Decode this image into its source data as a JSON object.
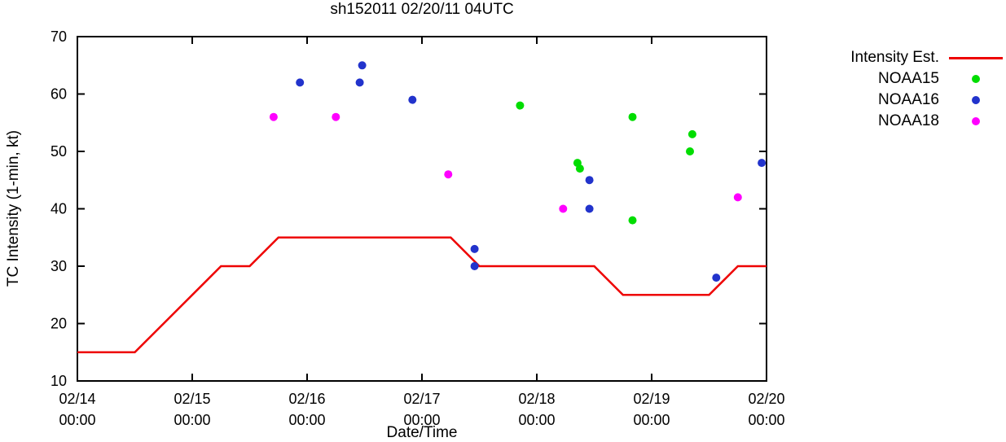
{
  "title": "sh152011 02/20/11 04UTC",
  "chart_data": {
    "type": "line",
    "title": "sh152011 02/20/11 04UTC",
    "xlabel": "Date/Time",
    "ylabel": "TC Intensity (1-min, kt)",
    "ylim": [
      10,
      70
    ],
    "x_range_hours": [
      0,
      144
    ],
    "grid": false,
    "legend_position": "outside-top-right",
    "y_ticks": [
      10,
      20,
      30,
      40,
      50,
      60,
      70
    ],
    "x_ticks": [
      {
        "hour": 0,
        "date": "02/14",
        "time": "00:00"
      },
      {
        "hour": 24,
        "date": "02/15",
        "time": "00:00"
      },
      {
        "hour": 48,
        "date": "02/16",
        "time": "00:00"
      },
      {
        "hour": 72,
        "date": "02/17",
        "time": "00:00"
      },
      {
        "hour": 96,
        "date": "02/18",
        "time": "00:00"
      },
      {
        "hour": 120,
        "date": "02/19",
        "time": "00:00"
      },
      {
        "hour": 144,
        "date": "02/20",
        "time": "00:00"
      }
    ],
    "series": [
      {
        "name": "Intensity Est.",
        "type": "line",
        "color": "#ee0000",
        "points": [
          [
            0,
            15
          ],
          [
            12,
            15
          ],
          [
            30,
            30
          ],
          [
            36,
            30
          ],
          [
            42,
            35
          ],
          [
            78,
            35
          ],
          [
            84,
            30
          ],
          [
            108,
            30
          ],
          [
            114,
            25
          ],
          [
            132,
            25
          ],
          [
            138,
            30
          ],
          [
            144,
            30
          ]
        ]
      },
      {
        "name": "NOAA15",
        "type": "scatter",
        "color": "#00dd00",
        "points": [
          [
            92.5,
            58
          ],
          [
            104.5,
            48
          ],
          [
            105,
            47
          ],
          [
            116,
            56
          ],
          [
            116,
            38
          ],
          [
            128.5,
            53
          ],
          [
            128,
            50
          ]
        ]
      },
      {
        "name": "NOAA16",
        "type": "scatter",
        "color": "#2233cc",
        "points": [
          [
            46.5,
            62
          ],
          [
            59.5,
            65
          ],
          [
            59,
            62
          ],
          [
            70,
            59
          ],
          [
            83,
            33
          ],
          [
            83,
            30
          ],
          [
            107,
            45
          ],
          [
            107,
            40
          ],
          [
            133.5,
            28
          ],
          [
            143,
            48
          ]
        ]
      },
      {
        "name": "NOAA18",
        "type": "scatter",
        "color": "#ff00ff",
        "points": [
          [
            41,
            56
          ],
          [
            54,
            56
          ],
          [
            77.5,
            46
          ],
          [
            101.5,
            40
          ],
          [
            138,
            42
          ]
        ]
      }
    ]
  }
}
